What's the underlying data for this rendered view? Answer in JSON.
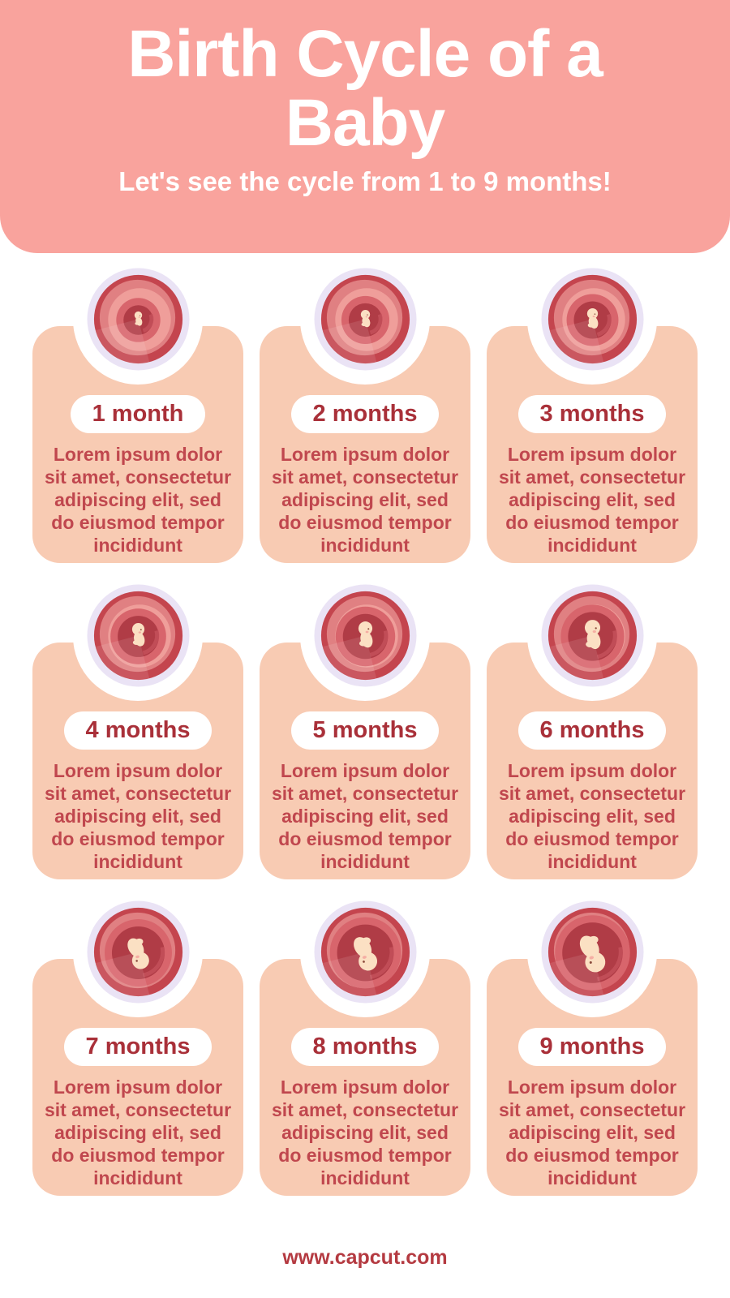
{
  "header": {
    "title_line1": "Birth Cycle of a",
    "title_line2": "Baby",
    "subtitle": "Let's see the cycle from 1 to 9 months!"
  },
  "cards": [
    {
      "month": 1,
      "label": "1 month",
      "body": "Lorem ipsum dolor sit amet, consectetur adipiscing elit, sed do eiusmod tempor incididunt"
    },
    {
      "month": 2,
      "label": "2 months",
      "body": "Lorem ipsum dolor sit amet, consectetur adipiscing elit, sed do eiusmod tempor incididunt"
    },
    {
      "month": 3,
      "label": "3 months",
      "body": "Lorem ipsum dolor sit amet, consectetur adipiscing elit, sed do eiusmod tempor incididunt"
    },
    {
      "month": 4,
      "label": "4 months",
      "body": "Lorem ipsum dolor sit amet, consectetur adipiscing elit, sed do eiusmod tempor incididunt"
    },
    {
      "month": 5,
      "label": "5 months",
      "body": "Lorem ipsum dolor sit amet, consectetur adipiscing elit, sed do eiusmod tempor incididunt"
    },
    {
      "month": 6,
      "label": "6 months",
      "body": "Lorem ipsum dolor sit amet, consectetur adipiscing elit, sed do eiusmod tempor incididunt"
    },
    {
      "month": 7,
      "label": "7 months",
      "body": "Lorem ipsum dolor sit amet, consectetur adipiscing elit, sed do eiusmod tempor incididunt"
    },
    {
      "month": 8,
      "label": "8 months",
      "body": "Lorem ipsum dolor sit amet, consectetur adipiscing elit, sed do eiusmod tempor incididunt"
    },
    {
      "month": 9,
      "label": "9 months",
      "body": "Lorem ipsum dolor sit amet, consectetur adipiscing elit, sed do eiusmod tempor incididunt"
    }
  ],
  "footer": {
    "url": "www.capcut.com"
  },
  "colors": {
    "header_background": "#F9A39D",
    "card_background": "#F8CBB3",
    "title_text": "#FFFFFF",
    "badge_text": "#A93039",
    "body_text": "#C0474E",
    "footer_text": "#B43A41",
    "illustration_ring": "#EAE3F5",
    "womb_dark": "#C4454E",
    "womb_mid": "#EF9E9A",
    "womb_light": "#E08082",
    "womb_cavity": "#B03C46",
    "fetus_skin": "#FBE0C3"
  }
}
